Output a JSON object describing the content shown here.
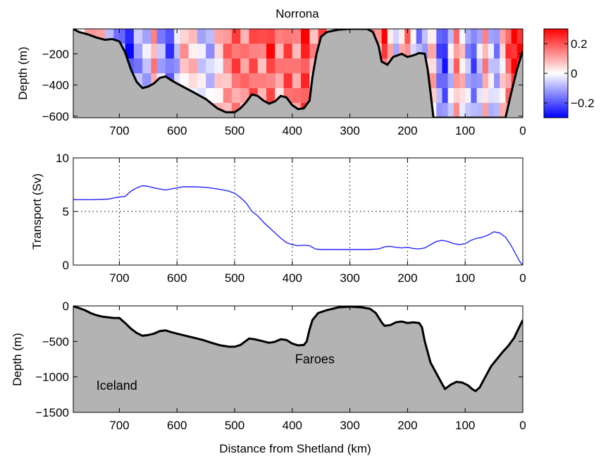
{
  "figure": {
    "xlabel": "Distance from Shetland (km)"
  },
  "chart_data": [
    {
      "type": "heatmap",
      "title": "Norrona",
      "ylabel": "Depth (m)",
      "xlim": [
        780,
        0
      ],
      "ylim": [
        -610,
        -40
      ],
      "xticks": [
        700,
        600,
        500,
        400,
        300,
        200,
        100,
        0
      ],
      "yticks": [
        -200,
        -400,
        -600
      ],
      "colorbar": {
        "range": [
          -0.3,
          0.3
        ],
        "ticks": [
          0.2,
          0,
          -0.2
        ],
        "tick_labels": [
          "0.2",
          "0",
          "−0.2"
        ],
        "colormap": [
          "#0000ff",
          "#ffffff",
          "#ff0000"
        ]
      },
      "seafloor": [
        [
          780,
          -40
        ],
        [
          770,
          -60
        ],
        [
          755,
          -75
        ],
        [
          740,
          -95
        ],
        [
          725,
          -110
        ],
        [
          712,
          -105
        ],
        [
          700,
          -120
        ],
        [
          690,
          -190
        ],
        [
          680,
          -300
        ],
        [
          670,
          -380
        ],
        [
          660,
          -420
        ],
        [
          650,
          -410
        ],
        [
          640,
          -390
        ],
        [
          630,
          -355
        ],
        [
          620,
          -345
        ],
        [
          610,
          -370
        ],
        [
          600,
          -390
        ],
        [
          585,
          -420
        ],
        [
          570,
          -450
        ],
        [
          560,
          -470
        ],
        [
          550,
          -490
        ],
        [
          540,
          -520
        ],
        [
          530,
          -550
        ],
        [
          515,
          -575
        ],
        [
          500,
          -575
        ],
        [
          490,
          -550
        ],
        [
          480,
          -510
        ],
        [
          470,
          -460
        ],
        [
          460,
          -470
        ],
        [
          450,
          -500
        ],
        [
          440,
          -520
        ],
        [
          430,
          -505
        ],
        [
          420,
          -470
        ],
        [
          410,
          -480
        ],
        [
          400,
          -530
        ],
        [
          390,
          -555
        ],
        [
          380,
          -550
        ],
        [
          370,
          -500
        ],
        [
          365,
          -350
        ],
        [
          358,
          -200
        ],
        [
          350,
          -90
        ],
        [
          340,
          -60
        ],
        [
          320,
          -45
        ],
        [
          300,
          -40
        ],
        [
          270,
          -40
        ],
        [
          260,
          -60
        ],
        [
          250,
          -150
        ],
        [
          245,
          -250
        ],
        [
          235,
          -270
        ],
        [
          225,
          -220
        ],
        [
          210,
          -200
        ],
        [
          200,
          -220
        ],
        [
          190,
          -210
        ],
        [
          180,
          -195
        ],
        [
          170,
          -200
        ],
        [
          165,
          -300
        ],
        [
          160,
          -450
        ],
        [
          155,
          -610
        ],
        [
          30,
          -610
        ],
        [
          20,
          -450
        ],
        [
          10,
          -300
        ],
        [
          0,
          -180
        ]
      ],
      "anomaly_columns": [
        [
          780,
          0.05
        ],
        [
          760,
          0.12
        ],
        [
          740,
          0.05
        ],
        [
          725,
          -0.05
        ],
        [
          710,
          -0.2
        ],
        [
          700,
          -0.12
        ],
        [
          690,
          -0.25
        ],
        [
          675,
          -0.12
        ],
        [
          660,
          -0.08
        ],
        [
          645,
          0.12
        ],
        [
          635,
          -0.1
        ],
        [
          620,
          -0.2
        ],
        [
          605,
          -0.08
        ],
        [
          595,
          0.08
        ],
        [
          580,
          0.05
        ],
        [
          565,
          -0.05
        ],
        [
          550,
          -0.08
        ],
        [
          535,
          0.05
        ],
        [
          520,
          0.15
        ],
        [
          505,
          0.2
        ],
        [
          490,
          0.15
        ],
        [
          475,
          0.22
        ],
        [
          460,
          0.15
        ],
        [
          445,
          0.25
        ],
        [
          430,
          0.12
        ],
        [
          415,
          0.22
        ],
        [
          400,
          0.15
        ],
        [
          385,
          0.28
        ],
        [
          370,
          0.1
        ],
        [
          355,
          0.2
        ],
        [
          340,
          0.08
        ],
        [
          325,
          0.12
        ],
        [
          310,
          0.05
        ],
        [
          295,
          0.0
        ],
        [
          280,
          -0.02
        ],
        [
          265,
          0.2
        ],
        [
          255,
          0.12
        ],
        [
          245,
          0.25
        ],
        [
          235,
          0.05
        ],
        [
          225,
          -0.08
        ],
        [
          215,
          0.08
        ],
        [
          205,
          0.2
        ],
        [
          195,
          -0.05
        ],
        [
          185,
          -0.15
        ],
        [
          175,
          -0.1
        ],
        [
          165,
          0.08
        ],
        [
          150,
          -0.18
        ],
        [
          140,
          -0.25
        ],
        [
          130,
          -0.05
        ],
        [
          120,
          0.15
        ],
        [
          110,
          0.05
        ],
        [
          100,
          -0.1
        ],
        [
          90,
          -0.2
        ],
        [
          80,
          -0.08
        ],
        [
          70,
          0.12
        ],
        [
          60,
          -0.05
        ],
        [
          50,
          -0.12
        ],
        [
          40,
          0.05
        ],
        [
          30,
          0.2
        ],
        [
          20,
          0.28
        ],
        [
          10,
          0.3
        ],
        [
          0,
          0.25
        ]
      ]
    },
    {
      "type": "line",
      "title": "",
      "ylabel": "Transport (Sv)",
      "xlim": [
        780,
        0
      ],
      "ylim": [
        0,
        10
      ],
      "xticks": [
        700,
        600,
        500,
        400,
        300,
        200,
        100,
        0
      ],
      "yticks": [
        0,
        5,
        10
      ],
      "grid": true,
      "series": [
        {
          "x": [
            780,
            750,
            720,
            705,
            700,
            690,
            680,
            670,
            660,
            650,
            640,
            620,
            610,
            600,
            590,
            570,
            550,
            530,
            520,
            510,
            500,
            490,
            480,
            470,
            460,
            450,
            440,
            430,
            420,
            410,
            400,
            390,
            380,
            370,
            360,
            350,
            330,
            310,
            290,
            270,
            250,
            240,
            230,
            220,
            210,
            200,
            190,
            180,
            170,
            160,
            150,
            140,
            130,
            120,
            110,
            100,
            90,
            80,
            70,
            60,
            50,
            40,
            30,
            20,
            10,
            5,
            0
          ],
          "values": [
            6.1,
            6.1,
            6.15,
            6.3,
            6.35,
            6.4,
            6.9,
            7.2,
            7.4,
            7.35,
            7.2,
            7.0,
            7.1,
            7.2,
            7.3,
            7.3,
            7.25,
            7.1,
            7.0,
            6.9,
            6.7,
            6.3,
            5.8,
            5.0,
            4.6,
            4.0,
            3.5,
            3.0,
            2.5,
            2.1,
            1.9,
            1.8,
            1.85,
            1.8,
            1.5,
            1.45,
            1.45,
            1.45,
            1.45,
            1.45,
            1.5,
            1.7,
            1.75,
            1.65,
            1.6,
            1.65,
            1.55,
            1.5,
            1.6,
            1.9,
            2.2,
            2.3,
            2.2,
            2.0,
            1.9,
            2.0,
            2.3,
            2.5,
            2.6,
            2.8,
            3.1,
            3.0,
            2.6,
            1.8,
            0.8,
            0.3,
            0.0
          ]
        }
      ]
    },
    {
      "type": "area",
      "title": "",
      "ylabel": "Depth (m)",
      "xlim": [
        780,
        0
      ],
      "ylim": [
        -1500,
        0
      ],
      "xticks": [
        700,
        600,
        500,
        400,
        300,
        200,
        100,
        0
      ],
      "yticks": [
        0,
        -500,
        -1000,
        -1500
      ],
      "tick_labels": {
        "y": [
          "0",
          "−500",
          "−1000",
          "−1500"
        ]
      },
      "annotations": [
        {
          "text": "Iceland",
          "x": 740,
          "y": -1180
        },
        {
          "text": "Faroes",
          "x": 395,
          "y": -810
        }
      ],
      "bathymetry": [
        [
          780,
          -5
        ],
        [
          770,
          -30
        ],
        [
          760,
          -60
        ],
        [
          750,
          -100
        ],
        [
          740,
          -130
        ],
        [
          730,
          -150
        ],
        [
          720,
          -160
        ],
        [
          710,
          -170
        ],
        [
          700,
          -170
        ],
        [
          690,
          -240
        ],
        [
          680,
          -320
        ],
        [
          670,
          -380
        ],
        [
          660,
          -420
        ],
        [
          650,
          -410
        ],
        [
          640,
          -390
        ],
        [
          630,
          -355
        ],
        [
          620,
          -345
        ],
        [
          610,
          -370
        ],
        [
          600,
          -390
        ],
        [
          585,
          -420
        ],
        [
          570,
          -450
        ],
        [
          555,
          -480
        ],
        [
          540,
          -520
        ],
        [
          525,
          -555
        ],
        [
          510,
          -575
        ],
        [
          500,
          -575
        ],
        [
          490,
          -550
        ],
        [
          475,
          -460
        ],
        [
          465,
          -470
        ],
        [
          450,
          -500
        ],
        [
          440,
          -520
        ],
        [
          430,
          -505
        ],
        [
          420,
          -470
        ],
        [
          410,
          -480
        ],
        [
          400,
          -530
        ],
        [
          390,
          -555
        ],
        [
          380,
          -550
        ],
        [
          375,
          -500
        ],
        [
          370,
          -330
        ],
        [
          365,
          -200
        ],
        [
          355,
          -100
        ],
        [
          340,
          -60
        ],
        [
          320,
          -20
        ],
        [
          300,
          -10
        ],
        [
          280,
          -20
        ],
        [
          265,
          -40
        ],
        [
          255,
          -100
        ],
        [
          245,
          -230
        ],
        [
          240,
          -280
        ],
        [
          230,
          -270
        ],
        [
          220,
          -230
        ],
        [
          210,
          -220
        ],
        [
          200,
          -240
        ],
        [
          190,
          -230
        ],
        [
          180,
          -240
        ],
        [
          175,
          -300
        ],
        [
          170,
          -500
        ],
        [
          165,
          -650
        ],
        [
          160,
          -800
        ],
        [
          150,
          -950
        ],
        [
          140,
          -1100
        ],
        [
          135,
          -1170
        ],
        [
          125,
          -1110
        ],
        [
          115,
          -1070
        ],
        [
          105,
          -1080
        ],
        [
          95,
          -1120
        ],
        [
          88,
          -1170
        ],
        [
          82,
          -1200
        ],
        [
          75,
          -1150
        ],
        [
          65,
          -1000
        ],
        [
          55,
          -850
        ],
        [
          45,
          -750
        ],
        [
          35,
          -650
        ],
        [
          25,
          -560
        ],
        [
          15,
          -450
        ],
        [
          8,
          -330
        ],
        [
          0,
          -200
        ]
      ]
    }
  ]
}
